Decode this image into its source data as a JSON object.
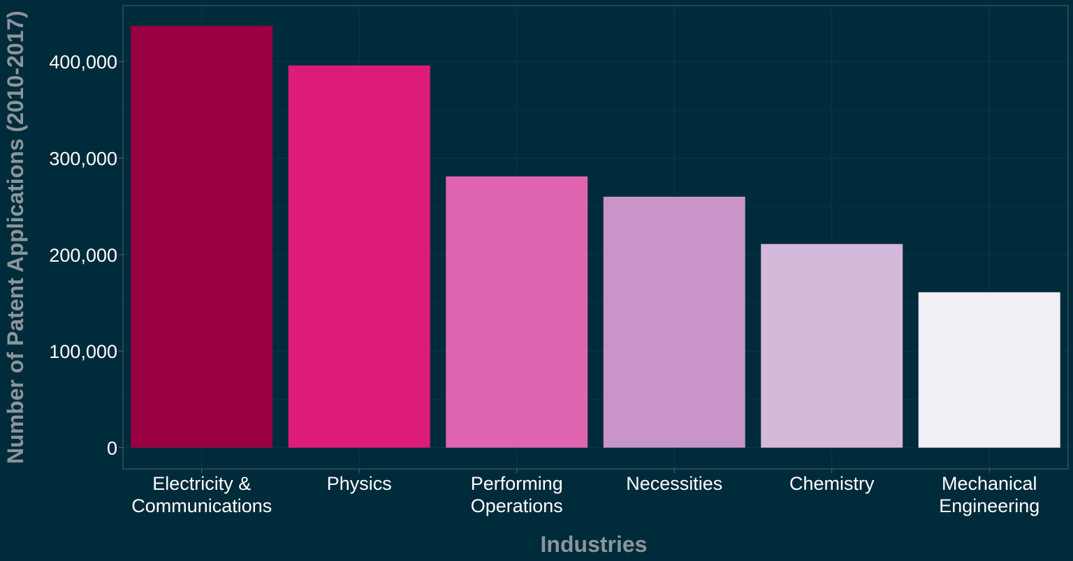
{
  "chart_data": {
    "type": "bar",
    "categories": [
      [
        "Electricity  &",
        "Communications"
      ],
      [
        "Physics"
      ],
      [
        "Performing",
        "Operations"
      ],
      [
        "Necessities"
      ],
      [
        "Chemistry"
      ],
      [
        "Mechanical",
        "Engineering"
      ]
    ],
    "values": [
      437000,
      396000,
      281000,
      260000,
      211000,
      161000
    ],
    "bar_colors": [
      "#980041",
      "#dd1c77",
      "#df65b0",
      "#c994c7",
      "#d4b9da",
      "#f1eef6"
    ],
    "xlabel": "Industries",
    "ylabel": "Number of Patent Applications (2010-2017)",
    "ylim": [
      -22000,
      458000
    ],
    "yticks": [
      0,
      100000,
      200000,
      300000,
      400000
    ],
    "ytick_labels": [
      "0",
      "100,000",
      "200,000",
      "300,000",
      "400,000"
    ],
    "grid": true,
    "legend": "none",
    "colors": {
      "background": "#002b3a",
      "grid": "#0d3a48",
      "panel_border": "#4d6670",
      "tick_text": "#ffffff",
      "axis_title": "#8a969b"
    }
  }
}
